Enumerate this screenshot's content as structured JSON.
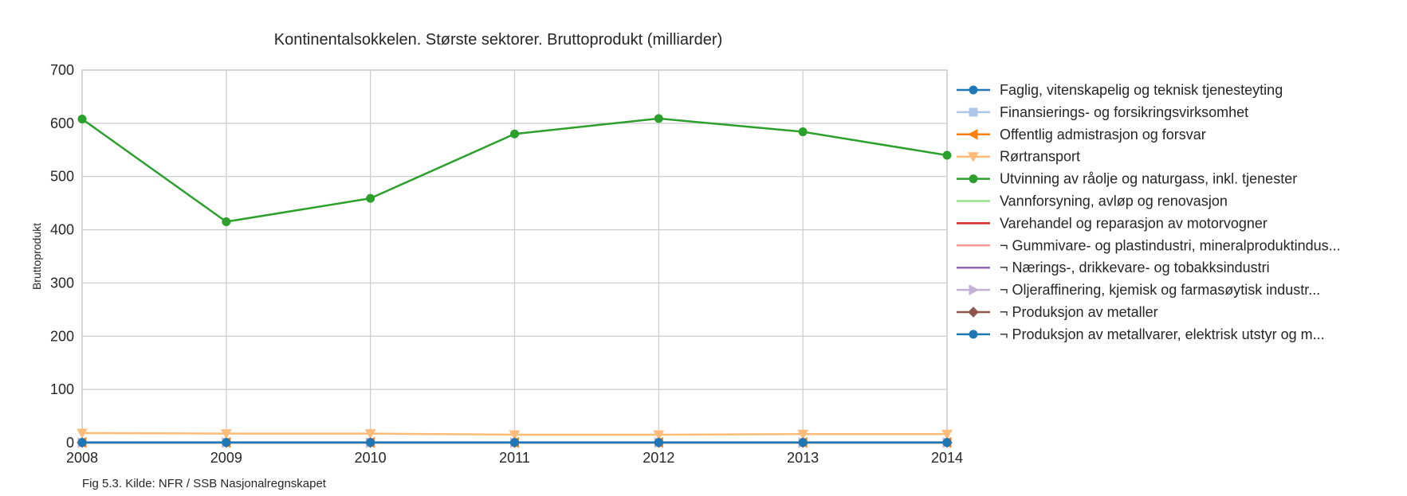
{
  "chart_data": {
    "type": "line",
    "title": "Kontinentalsokkelen. Største sektorer. Bruttoprodukt (milliarder)",
    "xlabel": "",
    "ylabel": "Bruttoprodukt",
    "x": [
      "2008",
      "2009",
      "2010",
      "2011",
      "2012",
      "2013",
      "2014"
    ],
    "xlim": [
      2008,
      2014
    ],
    "ylim": [
      0,
      700
    ],
    "yticks": [
      "0",
      "100",
      "200",
      "300",
      "400",
      "500",
      "600",
      "700"
    ],
    "grid": true,
    "legend_position": "right-outside",
    "series": [
      {
        "name": "Faglig, vitenskapelig og teknisk tjenesteyting",
        "color": "#1f77b4",
        "marker": "circle",
        "values": [
          0.5,
          0.5,
          0.5,
          0.5,
          0.5,
          0.5,
          0.5
        ]
      },
      {
        "name": "Finansierings- og forsikringsvirksomhet",
        "color": "#aec7e8",
        "marker": "square",
        "values": [
          0.3,
          0.3,
          0.3,
          0.3,
          0.3,
          0.3,
          0.3
        ]
      },
      {
        "name": "Offentlig admistrasjon og forsvar",
        "color": "#ff7f0e",
        "marker": "triangle-left",
        "values": [
          0.4,
          0.4,
          0.4,
          0.4,
          0.4,
          0.4,
          0.4
        ]
      },
      {
        "name": "Rørtransport",
        "color": "#ffbb78",
        "marker": "triangle-down",
        "values": [
          18,
          17,
          17,
          15,
          15,
          16,
          16
        ]
      },
      {
        "name": "Utvinning av råolje og naturgass, inkl. tjenester",
        "color": "#2ca02c",
        "marker": "circle",
        "values": [
          608,
          415,
          459,
          580,
          609,
          584,
          540
        ]
      },
      {
        "name": "Vannforsyning, avløp og renovasjon",
        "color": "#98df8a",
        "marker": "none",
        "values": [
          0,
          0,
          0,
          0,
          0,
          0,
          0
        ]
      },
      {
        "name": "Varehandel og reparasjon av motorvogner",
        "color": "#d62728",
        "marker": "none",
        "values": [
          0.3,
          0.3,
          0.3,
          0.3,
          0.3,
          0.3,
          0.3
        ]
      },
      {
        "name": "¬ Gummivare- og plastindustri, mineralproduktindus...",
        "color": "#ff9896",
        "marker": "none",
        "values": [
          0.1,
          0.1,
          0.1,
          0.1,
          0.1,
          0.1,
          0.1
        ]
      },
      {
        "name": "¬ Nærings-, drikkevare- og tobakksindustri",
        "color": "#9467bd",
        "marker": "none",
        "values": [
          0.1,
          0.1,
          0.1,
          0.1,
          0.1,
          0.1,
          0.1
        ]
      },
      {
        "name": "¬ Oljeraffinering, kjemisk og farmasøytisk industr...",
        "color": "#c5b0d5",
        "marker": "triangle-right",
        "values": [
          0.1,
          0.1,
          0.1,
          0.1,
          0.1,
          0.1,
          0.1
        ]
      },
      {
        "name": "¬ Produksjon av metaller",
        "color": "#8c564b",
        "marker": "diamond",
        "values": [
          0.1,
          0.1,
          0.1,
          0.1,
          0.1,
          0.1,
          0.1
        ]
      },
      {
        "name": "¬ Produksjon av metallvarer, elektrisk utstyr og m...",
        "color": "#1f77b4",
        "marker": "circle",
        "values": [
          0.4,
          0.4,
          0.4,
          0.4,
          0.4,
          0.4,
          0.4
        ]
      }
    ]
  },
  "caption": "Fig 5.3. Kilde: NFR / SSB Nasjonalregnskapet"
}
